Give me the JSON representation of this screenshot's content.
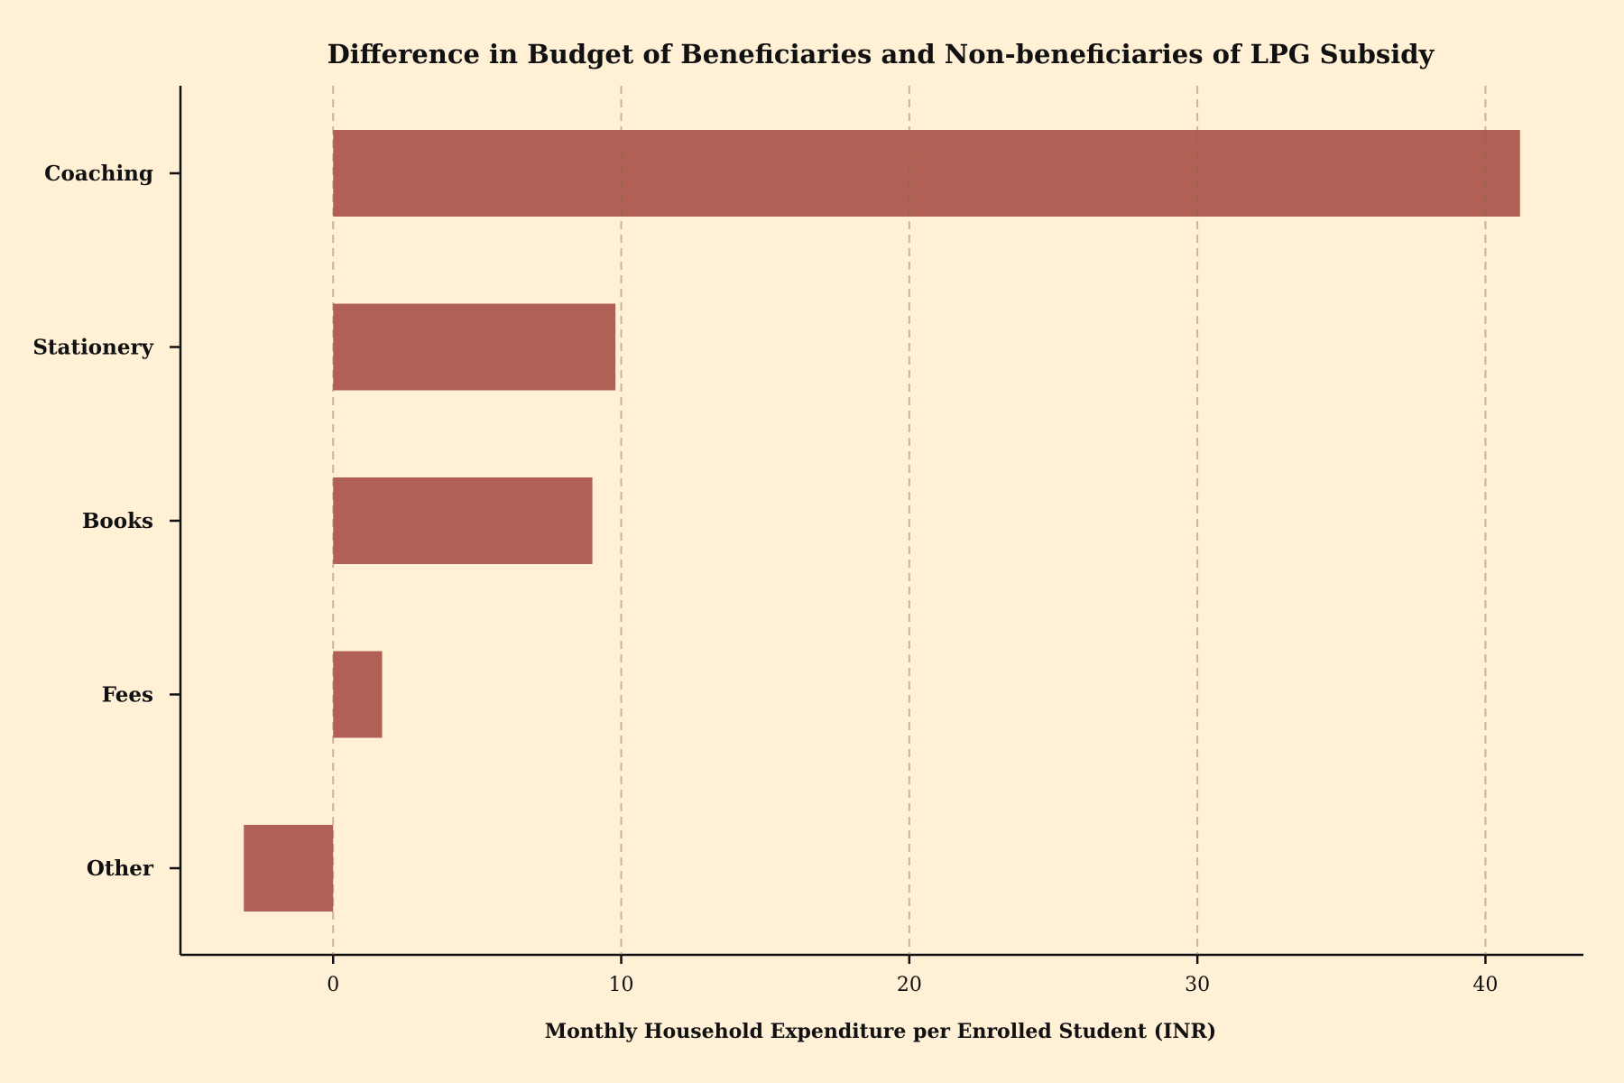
{
  "chart_data": {
    "type": "bar",
    "orientation": "horizontal",
    "title": "Difference in Budget of Beneficiaries and Non-beneficiaries of LPG Subsidy",
    "xlabel": "Monthly Household Expenditure per Enrolled Student (INR)",
    "ylabel": "",
    "categories": [
      "Coaching",
      "Stationery",
      "Books",
      "Fees",
      "Other"
    ],
    "values": [
      41.2,
      9.8,
      9.0,
      1.7,
      -3.1
    ],
    "xlim": [
      -5.3,
      43.4
    ],
    "xticks": [
      0,
      10,
      20,
      30,
      40
    ],
    "xtick_labels": [
      "0",
      "10",
      "20",
      "30",
      "40"
    ],
    "grid": "vertical dashed",
    "legend": "none"
  },
  "colors": {
    "background": "#fff0d6",
    "bar": "#b06055",
    "grid": "#c9b89f",
    "axis": "#111111"
  }
}
